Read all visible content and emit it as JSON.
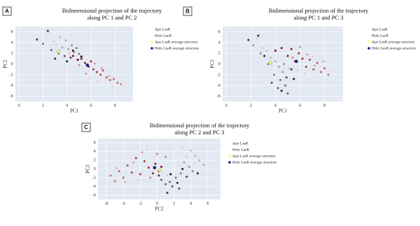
{
  "chart_data": [
    {
      "type": "scatter",
      "panel_label": "A",
      "title": [
        "Bidimensional projection of the trajectory",
        "along PC 1 and PC 2"
      ],
      "xlabel": "PC1",
      "ylabel": "PC2",
      "xlim": [
        -0.3,
        9.5
      ],
      "xticks": [
        0,
        2,
        4,
        6,
        8
      ],
      "ylim": [
        -7,
        7
      ],
      "yticks": [
        -6,
        -4,
        -2,
        0,
        2,
        4,
        6
      ],
      "grid": true,
      "series": [
        {
          "name": "Apo LasR",
          "color": [
            "#e8e8e8",
            "#111111"
          ],
          "x": [
            1.8,
            2.2,
            2.5,
            2.9,
            3.1,
            3.4,
            3.6,
            3.9,
            4.1,
            4.4,
            4.6,
            4.8,
            5.0,
            2.0,
            2.7,
            3.3,
            3.8,
            4.3,
            4.9,
            1.5,
            2.4,
            3.0,
            4.0,
            4.5,
            5.2
          ],
          "values": [
            5.5,
            4.8,
            5.9,
            4.2,
            3.6,
            5.0,
            3.1,
            4.4,
            2.8,
            3.5,
            2.2,
            3.0,
            1.9,
            3.8,
            2.6,
            2.0,
            1.5,
            1.2,
            0.8,
            4.6,
            6.2,
            1.0,
            0.5,
            2.5,
            1.4
          ]
        },
        {
          "name": "Holo LasR",
          "color": [
            "#8b0000",
            "#fbd8cc"
          ],
          "x": [
            4.5,
            4.9,
            5.2,
            5.5,
            5.8,
            6.0,
            6.2,
            6.5,
            6.8,
            7.0,
            7.3,
            7.6,
            7.9,
            8.2,
            8.5,
            5.0,
            5.6,
            6.3,
            6.9,
            7.5,
            4.2,
            5.9,
            6.6,
            7.8,
            8.8
          ],
          "values": [
            1.5,
            0.8,
            1.0,
            0.2,
            -0.5,
            0.5,
            -1.0,
            -1.5,
            -2.0,
            -1.2,
            -2.5,
            -3.0,
            -2.8,
            -3.5,
            -3.8,
            -0.2,
            -1.8,
            0.1,
            -0.8,
            -2.2,
            2.0,
            -2.6,
            -3.2,
            -4.2,
            -4.0
          ]
        },
        {
          "name": "Apo LasR average structure",
          "color": "#ffff66",
          "x": [
            3.3
          ],
          "values": [
            2.3
          ]
        },
        {
          "name": "Holo LasR average structure",
          "color": "#1a1a8c",
          "x": [
            5.7
          ],
          "values": [
            -0.2
          ]
        }
      ]
    },
    {
      "type": "scatter",
      "panel_label": "B",
      "title": [
        "Bidimensional projection of the trajectory",
        "along PC 1 and PC 3"
      ],
      "xlabel": "PC1",
      "ylabel": "PC3",
      "xlim": [
        -0.3,
        9.5
      ],
      "xticks": [
        0,
        2,
        4,
        6,
        8
      ],
      "ylim": [
        -7,
        7
      ],
      "yticks": [
        -6,
        -4,
        -2,
        0,
        2,
        4,
        6
      ],
      "grid": true,
      "series": [
        {
          "name": "Apo LasR",
          "color": [
            "#e8e8e8",
            "#111111"
          ],
          "x": [
            1.5,
            2.0,
            2.5,
            3.0,
            3.3,
            3.6,
            4.0,
            4.3,
            4.6,
            2.2,
            2.8,
            3.4,
            3.9,
            4.4,
            4.8,
            5.0,
            4.2,
            3.7,
            4.9,
            5.3,
            1.8,
            2.6,
            3.1,
            4.5,
            5.5
          ],
          "values": [
            5.0,
            4.2,
            4.8,
            3.0,
            2.5,
            1.2,
            0.5,
            -0.5,
            -1.5,
            3.5,
            2.0,
            0.0,
            -2.0,
            -3.0,
            -4.0,
            -5.5,
            -4.5,
            -3.5,
            -2.5,
            -1.0,
            4.5,
            5.3,
            1.5,
            -5.0,
            -2.8
          ]
        },
        {
          "name": "Holo LasR",
          "color": [
            "#8b0000",
            "#fbd8cc"
          ],
          "x": [
            4.0,
            4.5,
            5.0,
            5.3,
            5.6,
            5.9,
            6.2,
            6.5,
            6.8,
            7.1,
            7.4,
            7.7,
            8.0,
            8.3,
            4.7,
            5.4,
            6.0,
            6.6,
            7.2,
            7.9,
            5.1,
            5.8,
            6.4,
            7.0,
            8.5
          ],
          "values": [
            2.5,
            3.0,
            1.5,
            2.8,
            0.5,
            2.0,
            1.0,
            -0.5,
            0.8,
            -1.0,
            0.2,
            -1.5,
            -0.8,
            -2.0,
            0.0,
            1.2,
            3.2,
            1.8,
            -0.3,
            0.5,
            -0.8,
            -1.2,
            -1.8,
            1.4,
            -1.0
          ]
        },
        {
          "name": "Apo LasR average structure",
          "color": "#ffff66",
          "x": [
            3.6
          ],
          "values": [
            0.2
          ]
        },
        {
          "name": "Holo LasR average structure",
          "color": "#1a1a8c",
          "x": [
            5.7
          ],
          "values": [
            0.5
          ]
        }
      ]
    },
    {
      "type": "scatter",
      "panel_label": "C",
      "title": [
        "Bidimensional projection of the trajectory",
        "along PC 2 and PC 3"
      ],
      "xlabel": "PC2",
      "ylabel": "PC3",
      "xlim": [
        -7,
        7.5
      ],
      "xticks": [
        -6,
        -4,
        -2,
        0,
        2,
        4,
        6
      ],
      "ylim": [
        -7,
        7
      ],
      "yticks": [
        -6,
        -4,
        -2,
        0,
        2,
        4,
        6
      ],
      "grid": true,
      "series": [
        {
          "name": "Apo LasR",
          "color": [
            "#e8e8e8",
            "#111111"
          ],
          "x": [
            2.0,
            2.5,
            3.0,
            3.5,
            4.0,
            4.5,
            5.0,
            5.5,
            3.2,
            3.8,
            4.2,
            2.8,
            2.2,
            1.5,
            1.0,
            0.5,
            1.8,
            2.6,
            3.5,
            0.2,
            1.2,
            2.4,
            4.8,
            3.0,
            1.6
          ],
          "values": [
            4.5,
            3.5,
            5.0,
            2.8,
            4.2,
            3.0,
            2.0,
            1.0,
            1.5,
            0.5,
            -0.5,
            -1.0,
            -2.0,
            -3.0,
            -3.5,
            -2.5,
            -4.0,
            -4.5,
            -1.8,
            -1.5,
            -5.5,
            -3.2,
            -1.0,
            0.0,
            -1.2
          ]
        },
        {
          "name": "Holo LasR",
          "color": [
            "#8b0000",
            "#fbd8cc"
          ],
          "x": [
            0.5,
            0.2,
            -0.2,
            -0.5,
            -1.0,
            -1.5,
            -2.0,
            -2.5,
            -3.0,
            -3.5,
            -4.0,
            -4.5,
            -5.0,
            -5.5,
            1.0,
            0.0,
            -0.8,
            -1.8,
            -2.8,
            -3.8,
            -4.8,
            1.2,
            -1.2,
            -2.2,
            -3.2
          ],
          "values": [
            0.5,
            -0.5,
            1.2,
            -1.0,
            0.3,
            1.8,
            -1.2,
            2.5,
            -0.8,
            0.8,
            -2.0,
            -0.5,
            -2.8,
            -1.5,
            2.8,
            3.5,
            -2.0,
            3.8,
            1.5,
            -3.0,
            0.2,
            -1.5,
            4.5,
            -2.5,
            2.2
          ]
        },
        {
          "name": "Apo LasR average structure",
          "color": "#ffff66",
          "x": [
            0.3
          ],
          "values": [
            -0.3
          ]
        },
        {
          "name": "Holo LasR average structure",
          "color": "#1a1a8c",
          "x": [
            -0.3
          ],
          "values": [
            0.3
          ]
        }
      ]
    }
  ]
}
